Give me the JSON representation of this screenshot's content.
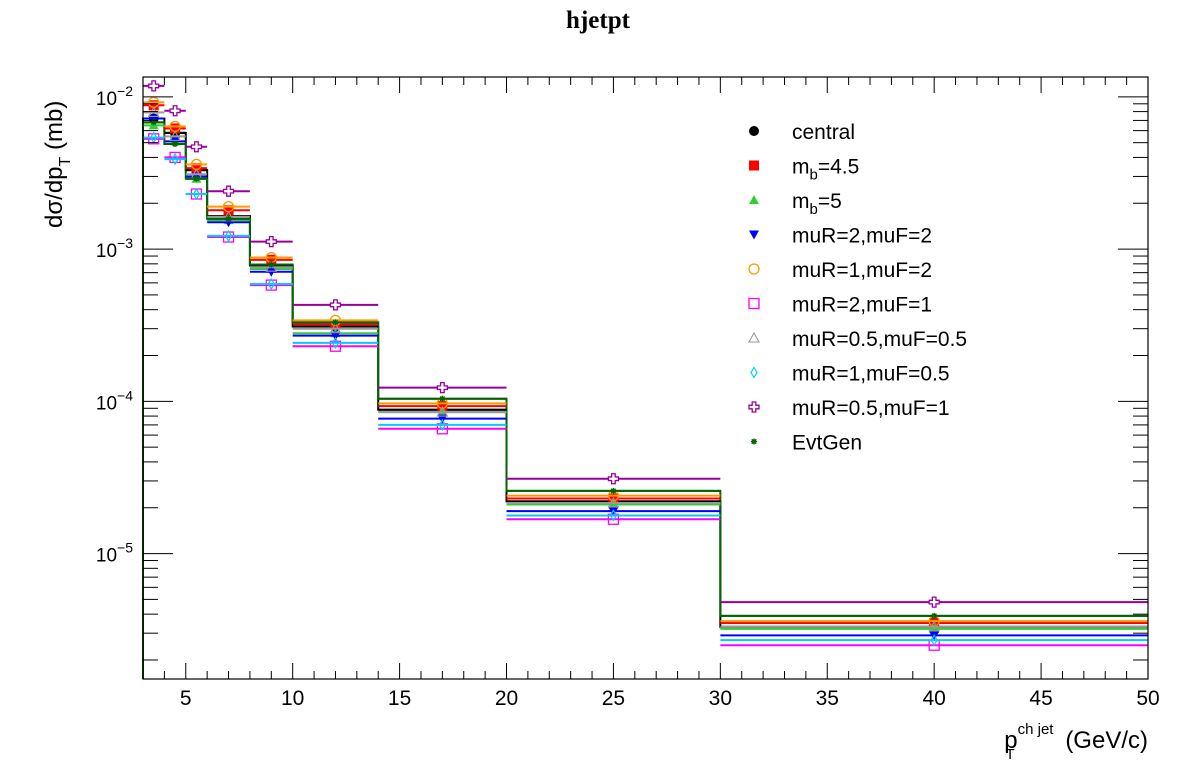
{
  "chart_data": {
    "type": "line",
    "title": "hjetpt",
    "xlabel": "p_T^{ch jet} (GeV/c)",
    "xlabel_parts": {
      "base": "p",
      "sub": "T",
      "sup": "ch jet",
      "unit": "(GeV/c)"
    },
    "ylabel": "dσ/dp_T (mb)",
    "ylabel_parts": {
      "base": "dσ/dp",
      "sub": "T",
      "unit": "(mb)"
    },
    "x_edges": [
      3,
      4,
      5,
      6,
      8,
      10,
      14,
      20,
      30,
      50
    ],
    "x_centers": [
      3.5,
      4.5,
      5.5,
      7,
      9,
      12,
      17,
      25,
      40
    ],
    "xlim": [
      3,
      50
    ],
    "ylim": [
      1.5e-06,
      0.0135
    ],
    "yscale": "log",
    "x_ticks": [
      "5",
      "10",
      "15",
      "20",
      "25",
      "30",
      "35",
      "40",
      "45",
      "50"
    ],
    "y_ticks": [
      {
        "base": "10",
        "exp": "−2"
      },
      {
        "base": "10",
        "exp": "−3"
      },
      {
        "base": "10",
        "exp": "−4"
      },
      {
        "base": "10",
        "exp": "−5"
      }
    ],
    "legend_position": "top-right",
    "series": [
      {
        "name": "central",
        "color": "#000000",
        "marker": "circle-filled",
        "hist": true,
        "values": [
          0.0072,
          0.0058,
          0.0033,
          0.00165,
          0.00078,
          0.00031,
          8.8e-05,
          2.2e-05,
          3.3e-06
        ]
      },
      {
        "name": "m_b=4.5",
        "label_parts": {
          "base": "m",
          "sub": "b",
          "rest": "=4.5"
        },
        "color": "#ff0000",
        "marker": "square-filled",
        "values": [
          0.0088,
          0.0062,
          0.0034,
          0.0018,
          0.00085,
          0.00032,
          9.3e-05,
          2.3e-05,
          3.5e-06
        ]
      },
      {
        "name": "m_b=5",
        "label_parts": {
          "base": "m",
          "sub": "b",
          "rest": "=5"
        },
        "color": "#33cc33",
        "marker": "triangle-filled",
        "values": [
          0.0065,
          0.0051,
          0.0029,
          0.00155,
          0.00074,
          0.00028,
          8.5e-05,
          2.1e-05,
          3.2e-06
        ]
      },
      {
        "name": "muR=2,muF=2",
        "color": "#0000ff",
        "marker": "triangle-down-filled",
        "values": [
          0.0072,
          0.0051,
          0.003,
          0.0015,
          0.00071,
          0.00027,
          7.7e-05,
          1.9e-05,
          2.9e-06
        ]
      },
      {
        "name": "muR=1,muF=2",
        "color": "#ff9900",
        "marker": "circle-open",
        "values": [
          0.0092,
          0.0064,
          0.0036,
          0.0019,
          0.00088,
          0.00034,
          9.7e-05,
          2.4e-05,
          3.6e-06
        ]
      },
      {
        "name": "muR=2,muF=1",
        "color": "#ff00ff",
        "marker": "square-open",
        "values": [
          0.0053,
          0.004,
          0.0023,
          0.0012,
          0.00058,
          0.00023,
          6.6e-05,
          1.68e-05,
          2.5e-06
        ]
      },
      {
        "name": "muR=0.5,muF=0.5",
        "color": "#999999",
        "marker": "triangle-open",
        "values": [
          0.0079,
          0.0055,
          0.0031,
          0.00163,
          0.00076,
          0.0003,
          8.5e-05,
          2.15e-05,
          3.3e-06
        ]
      },
      {
        "name": "muR=1,muF=0.5",
        "color": "#00ccff",
        "marker": "diamond-open",
        "values": [
          0.0054,
          0.0039,
          0.0023,
          0.00122,
          0.00059,
          0.000242,
          7e-05,
          1.78e-05,
          2.7e-06
        ]
      },
      {
        "name": "muR=0.5,muF=1",
        "color": "#990099",
        "marker": "cross-open",
        "values": [
          0.0118,
          0.0081,
          0.0047,
          0.0024,
          0.00112,
          0.00043,
          0.000123,
          3.1e-05,
          4.8e-06
        ]
      },
      {
        "name": "EvtGen",
        "color": "#006600",
        "marker": "star",
        "hist": true,
        "values": [
          0.0068,
          0.0049,
          0.0029,
          0.00158,
          0.00079,
          0.00033,
          0.000104,
          2.58e-05,
          3.9e-06
        ]
      }
    ]
  }
}
